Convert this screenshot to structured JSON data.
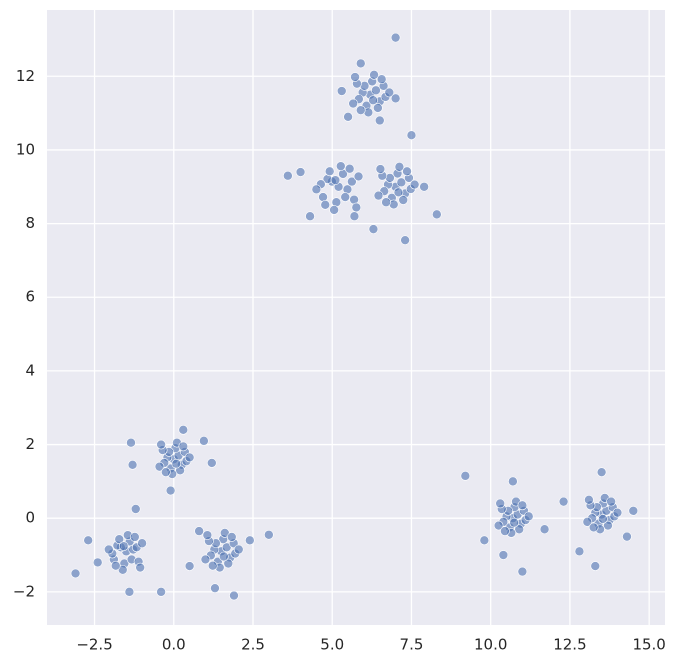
{
  "chart_data": {
    "type": "scatter",
    "color": "#4c72b0",
    "grid": true,
    "xlim": [
      -4.0,
      15.5
    ],
    "ylim": [
      -2.9,
      13.8
    ],
    "xticks": [
      {
        "value": -2.5,
        "label": "−2.5"
      },
      {
        "value": 0,
        "label": "0.0"
      },
      2.5,
      {
        "value": 5,
        "label": "5.0"
      },
      7.5,
      {
        "value": 10,
        "label": "10.0"
      },
      12.5,
      {
        "value": 15,
        "label": "15.0"
      }
    ],
    "yticks": [
      {
        "value": -2,
        "label": "−2"
      },
      0,
      2,
      4,
      6,
      8,
      10,
      12
    ],
    "x": [
      6.2,
      6.38,
      5.96,
      6.5,
      6.08,
      6.62,
      5.84,
      6.26,
      6.02,
      6.44,
      5.78,
      6.68,
      6.14,
      6.32,
      5.66,
      6.56,
      5.9,
      6.8,
      5.72,
      6.29,
      5.3,
      7.0,
      5.9,
      6.5,
      5.5,
      5.2,
      4.99,
      5.48,
      4.85,
      5.34,
      4.71,
      5.62,
      5.13,
      5.41,
      4.92,
      5.69,
      4.64,
      5.27,
      5.06,
      5.83,
      4.78,
      5.55,
      4.5,
      5.76,
      5.1,
      4.0,
      4.3,
      5.7,
      3.6,
      7.0,
      7.18,
      6.76,
      7.3,
      6.88,
      7.42,
      6.64,
      7.06,
      6.82,
      7.24,
      6.58,
      7.48,
      6.94,
      7.12,
      6.46,
      7.36,
      6.7,
      7.6,
      6.52,
      7.09,
      7.9,
      8.3,
      7.5,
      6.3,
      0.0,
      0.15,
      -0.2,
      0.25,
      -0.1,
      0.35,
      -0.3,
      0.05,
      -0.15,
      0.2,
      -0.35,
      0.4,
      -0.05,
      0.1,
      -0.45,
      0.3,
      -0.25,
      0.5,
      -0.4,
      0.08,
      0.95,
      -1.35,
      -0.1,
      1.2,
      -1.3,
      0.3,
      -1.5,
      -1.67,
      -1.28,
      -1.78,
      -1.39,
      -1.89,
      -1.17,
      -1.56,
      -1.33,
      -1.72,
      -1.11,
      -1.94,
      -1.45,
      -1.61,
      -1.0,
      -1.83,
      -1.23,
      -2.05,
      -1.06,
      -1.58,
      -2.4,
      -2.7,
      -0.4,
      -1.4,
      -1.2,
      1.5,
      1.67,
      1.28,
      1.78,
      1.39,
      1.89,
      1.17,
      1.56,
      1.33,
      1.72,
      1.11,
      1.94,
      1.45,
      1.61,
      1.0,
      1.83,
      1.23,
      2.05,
      1.06,
      1.58,
      2.4,
      0.8,
      1.3,
      1.9,
      0.5,
      10.7,
      10.85,
      10.5,
      10.95,
      10.6,
      11.05,
      10.4,
      10.75,
      10.55,
      10.9,
      10.35,
      11.1,
      10.65,
      10.8,
      10.25,
      11.0,
      10.45,
      11.2,
      10.3,
      10.74,
      10.7,
      10.4,
      11.0,
      11.7,
      9.8,
      13.5,
      13.65,
      13.3,
      13.75,
      13.4,
      13.85,
      13.2,
      13.55,
      13.35,
      13.7,
      13.15,
      13.9,
      13.45,
      13.6,
      13.05,
      13.8,
      13.25,
      14.0,
      13.1,
      13.54,
      13.5,
      12.8,
      14.5,
      13.3,
      12.3,
      14.3,
      7.0,
      7.3,
      9.2,
      -3.1,
      3.0
    ],
    "y": [
      11.5,
      11.62,
      11.56,
      11.32,
      11.2,
      11.74,
      11.38,
      11.86,
      11.74,
      11.14,
      11.8,
      11.44,
      11.02,
      12.04,
      11.26,
      11.92,
      11.08,
      11.56,
      11.98,
      11.35,
      11.6,
      11.4,
      12.35,
      10.8,
      10.9,
      9.0,
      9.14,
      8.93,
      9.21,
      9.35,
      8.72,
      9.14,
      8.58,
      8.72,
      9.42,
      8.65,
      9.07,
      9.56,
      8.37,
      9.28,
      8.51,
      9.49,
      8.93,
      8.44,
      9.18,
      9.4,
      8.2,
      8.2,
      9.3,
      9.0,
      9.12,
      9.06,
      8.82,
      8.7,
      9.24,
      8.88,
      9.36,
      9.24,
      8.64,
      9.3,
      8.94,
      8.52,
      9.54,
      8.76,
      9.42,
      8.58,
      9.06,
      9.48,
      8.85,
      9.0,
      8.25,
      10.4,
      7.85,
      1.6,
      1.7,
      1.65,
      1.45,
      1.35,
      1.8,
      1.5,
      1.9,
      1.8,
      1.3,
      1.85,
      1.55,
      1.2,
      2.05,
      1.4,
      1.95,
      1.25,
      1.65,
      2.0,
      1.48,
      2.1,
      2.05,
      0.75,
      1.5,
      1.45,
      2.4,
      -0.9,
      -0.79,
      -0.85,
      -0.74,
      -0.63,
      -1.12,
      -0.79,
      -1.23,
      -1.12,
      -0.57,
      -1.18,
      -0.96,
      -0.46,
      -1.4,
      -0.68,
      -1.29,
      -0.51,
      -0.85,
      -1.34,
      -0.76,
      -1.2,
      -0.6,
      -2.0,
      -2.0,
      0.25,
      -0.9,
      -0.79,
      -0.85,
      -1.07,
      -1.18,
      -0.68,
      -1.01,
      -0.57,
      -0.68,
      -1.23,
      -0.62,
      -0.96,
      -1.34,
      -0.4,
      -1.12,
      -0.51,
      -1.29,
      -0.85,
      -0.46,
      -1.04,
      -0.6,
      -0.35,
      -1.9,
      -2.1,
      -1.3,
      0.0,
      0.1,
      0.05,
      -0.15,
      -0.25,
      0.2,
      -0.1,
      0.3,
      0.2,
      -0.3,
      0.25,
      -0.05,
      -0.4,
      0.45,
      -0.2,
      0.35,
      -0.35,
      0.05,
      0.4,
      -0.12,
      1.0,
      -1.0,
      -1.45,
      -0.3,
      -0.6,
      0.1,
      0.2,
      0.15,
      -0.05,
      -0.15,
      0.3,
      0.0,
      0.4,
      0.3,
      -0.2,
      0.35,
      0.05,
      -0.3,
      0.55,
      -0.1,
      0.45,
      -0.25,
      0.15,
      0.5,
      -0.02,
      1.25,
      -0.9,
      0.2,
      -1.3,
      0.45,
      -0.5,
      13.05,
      7.55,
      1.15,
      -1.5,
      -0.45
    ]
  }
}
